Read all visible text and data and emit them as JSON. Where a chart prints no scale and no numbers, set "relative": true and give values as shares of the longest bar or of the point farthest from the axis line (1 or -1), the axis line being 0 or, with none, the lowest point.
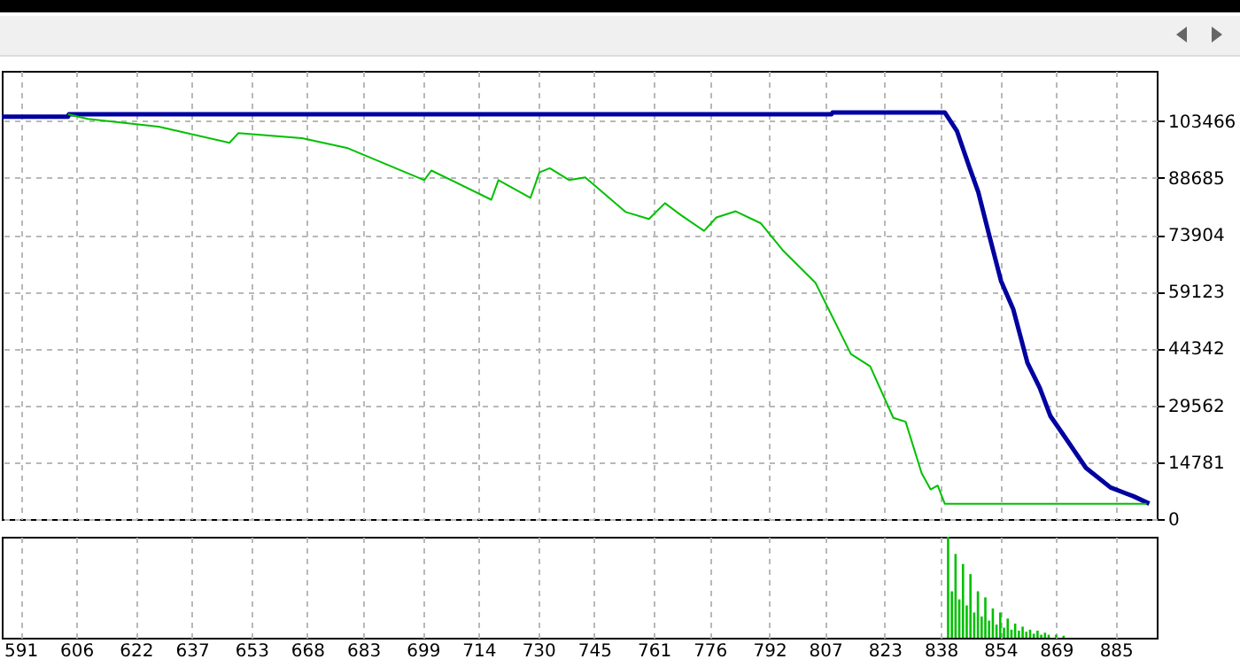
{
  "chart_data": [
    {
      "type": "line",
      "xlim": [
        586,
        896
      ],
      "xticks": [
        591,
        606,
        622,
        637,
        653,
        668,
        683,
        699,
        714,
        730,
        745,
        761,
        776,
        792,
        807,
        823,
        838,
        854,
        869,
        885
      ],
      "ylim": [
        0,
        116500
      ],
      "yticks": [
        0,
        14781,
        29562,
        44342,
        59123,
        73904,
        88685,
        103466
      ],
      "grid": true,
      "tick_labels": "y",
      "series": [
        {
          "color": "#0000a0",
          "x": [
            586,
            603.8,
            604,
            808.7,
            809,
            839.1,
            842.4,
            845.7,
            848.1,
            850.9,
            854.2,
            857.5,
            861.3,
            864.6,
            867.5,
            870.8,
            877,
            883.6,
            889.8,
            894
          ],
          "values": [
            104600,
            104600,
            105200,
            105200,
            105700,
            105700,
            100800,
            91500,
            85000,
            74300,
            61900,
            54500,
            40600,
            34100,
            26700,
            22100,
            13300,
            8200,
            5900,
            4000
          ]
        },
        {
          "color": "#00c000",
          "x": [
            603.8,
            609.1,
            628.1,
            647.1,
            649.5,
            666.6,
            678.9,
            699.4,
            701.3,
            717.4,
            719.3,
            727.9,
            730.3,
            733.1,
            738.3,
            742.6,
            753.5,
            759.7,
            764,
            768.3,
            774.5,
            777.8,
            783,
            789.7,
            795.8,
            804.4,
            813.9,
            819.1,
            825.3,
            828.6,
            832.9,
            835.3,
            837.2,
            839.1,
            893.3
          ],
          "values": [
            105200,
            104000,
            102000,
            97800,
            100300,
            99000,
            96400,
            88100,
            90600,
            83000,
            88100,
            83500,
            90100,
            91200,
            88100,
            88800,
            79800,
            78000,
            82100,
            79000,
            74900,
            78400,
            80000,
            76900,
            69700,
            61400,
            42900,
            39700,
            26300,
            25300,
            11900,
            7700,
            8700,
            4000,
            4000
          ]
        }
      ]
    },
    {
      "type": "bar",
      "relative": true,
      "color": "#00c000",
      "xlim": [
        586,
        896
      ],
      "xticks": [
        591,
        606,
        622,
        637,
        653,
        668,
        683,
        699,
        714,
        730,
        745,
        761,
        776,
        792,
        807,
        823,
        838,
        854,
        869,
        885
      ],
      "grid": "x",
      "tick_labels": "x",
      "x": [
        840,
        841,
        842,
        843,
        844,
        845,
        846,
        847,
        848,
        849,
        850,
        851,
        852,
        853,
        854,
        855,
        856,
        857,
        858,
        859,
        860,
        861,
        862,
        863,
        864,
        865,
        866,
        867,
        869,
        871
      ],
      "values": [
        1,
        0.46,
        0.83,
        0.38,
        0.73,
        0.32,
        0.63,
        0.25,
        0.46,
        0.21,
        0.4,
        0.17,
        0.29,
        0.13,
        0.25,
        0.1,
        0.19,
        0.08,
        0.14,
        0.07,
        0.11,
        0.06,
        0.08,
        0.04,
        0.07,
        0.03,
        0.05,
        0.03,
        0.03,
        0.02
      ]
    }
  ]
}
